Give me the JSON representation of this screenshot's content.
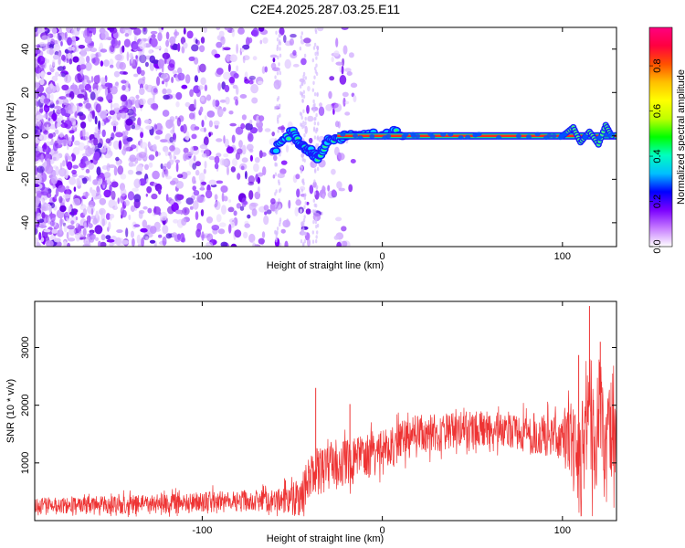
{
  "title": "C2E4.2025.287.03.25.E11",
  "chart_data": [
    {
      "type": "heatmap",
      "xlabel": "Height of straight line (km)",
      "ylabel": "Frequency (Hz)",
      "xlim": [
        -193,
        130
      ],
      "ylim": [
        -51,
        50
      ],
      "xticks": [
        -100,
        0,
        100
      ],
      "yticks": [
        -40,
        -20,
        0,
        20,
        40
      ],
      "colorbar": {
        "label": "Normalized spectral amplitude",
        "range": [
          0,
          0.97
        ],
        "ticks": [
          "0.0",
          "0.2",
          "0.4",
          "0.6",
          "0.8"
        ],
        "colors": [
          "#ffffff",
          "#c77dff",
          "#7b00ff",
          "#0000ff",
          "#00bfff",
          "#00ffbf",
          "#00ff00",
          "#bfff00",
          "#ffff00",
          "#ffbf00",
          "#ff5000",
          "#ff0040",
          "#ff0080"
        ]
      },
      "carrier_line": {
        "frequency": 0,
        "x_start": -25,
        "x_end": 130
      },
      "scatter_region": {
        "x_start": -193,
        "x_end": -40,
        "frequency_range": [
          -51,
          50
        ]
      },
      "transition": [
        {
          "x": -60,
          "y": -7
        },
        {
          "x": -50,
          "y": 2
        },
        {
          "x": -45,
          "y": -5
        },
        {
          "x": -40,
          "y": -7
        },
        {
          "x": -36,
          "y": -10
        },
        {
          "x": -30,
          "y": -2
        },
        {
          "x": -20,
          "y": 0
        },
        {
          "x": 5,
          "y": 2
        },
        {
          "x": 12,
          "y": 0
        }
      ],
      "high_end_wiggle": [
        {
          "x": 100,
          "y": 0
        },
        {
          "x": 106,
          "y": 4
        },
        {
          "x": 110,
          "y": -3
        },
        {
          "x": 115,
          "y": 2
        },
        {
          "x": 120,
          "y": -4
        },
        {
          "x": 124,
          "y": 5
        },
        {
          "x": 128,
          "y": -1
        }
      ]
    },
    {
      "type": "line",
      "xlabel": "Height of straight line (km)",
      "ylabel": "SNR (10 * v/v)",
      "xlim": [
        -193,
        130
      ],
      "ylim": [
        0,
        3800
      ],
      "xticks": [
        -100,
        0,
        100
      ],
      "yticks": [
        1000,
        2000,
        3000
      ],
      "color": "#ee3333",
      "series": [
        {
          "name": "SNR",
          "x": [
            -193,
            -170,
            -150,
            -130,
            -110,
            -100,
            -90,
            -70,
            -60,
            -50,
            -45,
            -40,
            -38,
            -35,
            -30,
            -20,
            -10,
            0,
            10,
            20,
            30,
            40,
            50,
            60,
            70,
            80,
            90,
            100,
            105,
            108,
            110,
            112,
            114,
            116,
            118,
            120,
            122,
            124,
            126,
            128,
            130
          ],
          "y": [
            260,
            270,
            270,
            280,
            300,
            320,
            330,
            340,
            350,
            380,
            420,
            800,
            850,
            850,
            900,
            1000,
            1100,
            1200,
            1350,
            1500,
            1520,
            1560,
            1600,
            1580,
            1560,
            1500,
            1480,
            1450,
            1380,
            1000,
            600,
            1400,
            2200,
            1800,
            1200,
            2000,
            1700,
            900,
            1400,
            1700,
            1500
          ]
        }
      ],
      "noise": [
        {
          "x": -193,
          "amplitude": 140
        },
        {
          "x": -60,
          "amplitude": 200
        },
        {
          "x": -40,
          "amplitude": 420
        },
        {
          "x": 0,
          "amplitude": 380
        },
        {
          "x": 50,
          "amplitude": 300
        },
        {
          "x": 100,
          "amplitude": 380
        },
        {
          "x": 110,
          "amplitude": 1100
        },
        {
          "x": 130,
          "amplitude": 900
        }
      ],
      "spikes": [
        {
          "x": -37,
          "y": 2300
        },
        {
          "x": -18,
          "y": 2020
        },
        {
          "x": 115,
          "y": 3720
        },
        {
          "x": 109,
          "y": 2870
        },
        {
          "x": 121,
          "y": 3100
        }
      ]
    }
  ]
}
